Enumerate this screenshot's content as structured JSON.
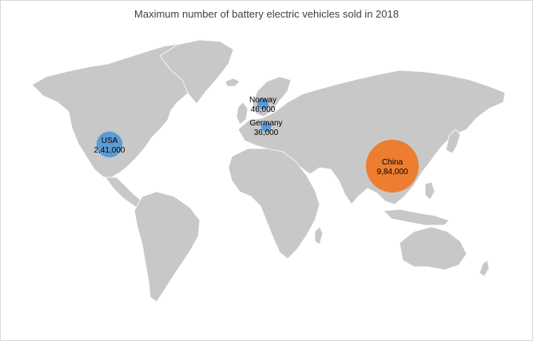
{
  "chart_data": {
    "type": "bubble-map",
    "title": "Maximum number of battery electric vehicles sold in 2018",
    "points": [
      {
        "country": "USA",
        "label": "2,41,000",
        "value": 241000,
        "color": "#5b9bd5"
      },
      {
        "country": "Norway",
        "label": "46,000",
        "value": 46000,
        "color": "#5b9bd5"
      },
      {
        "country": "Germany",
        "label": "36,000",
        "value": 36000,
        "color": "#5b9bd5"
      },
      {
        "country": "China",
        "label": "9,84,000",
        "value": 984000,
        "color": "#ed7d31"
      }
    ]
  }
}
